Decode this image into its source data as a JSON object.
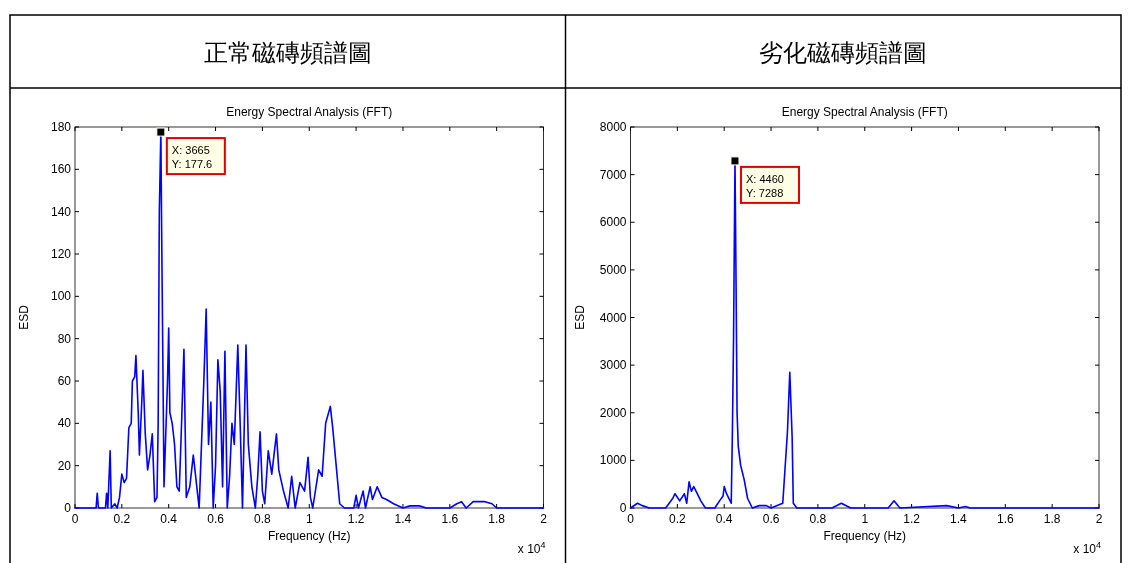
{
  "chart_data": [
    {
      "type": "line",
      "title": "正常磁磚頻譜圖",
      "subtitle": "Energy Spectral Analysis (FFT)",
      "xlabel": "Frequency (Hz)",
      "ylabel": "ESD",
      "xlim": [
        0,
        2
      ],
      "xticks": [
        0,
        0.2,
        0.4,
        0.6,
        0.8,
        1,
        1.2,
        1.4,
        1.6,
        1.8,
        2
      ],
      "ylim": [
        0,
        180
      ],
      "yticks": [
        0,
        20,
        40,
        60,
        80,
        100,
        120,
        140,
        160,
        180
      ],
      "grid": false,
      "series": [
        {
          "color": "#0000ff",
          "x": [
            0,
            0.09,
            0.095,
            0.1,
            0.13,
            0.135,
            0.14,
            0.15,
            0.155,
            0.17,
            0.18,
            0.19,
            0.2,
            0.21,
            0.22,
            0.23,
            0.24,
            0.245,
            0.255,
            0.26,
            0.27,
            0.275,
            0.285,
            0.29,
            0.3,
            0.31,
            0.32,
            0.33,
            0.34,
            0.35,
            0.355,
            0.36,
            0.3665,
            0.37,
            0.38,
            0.395,
            0.4,
            0.405,
            0.415,
            0.425,
            0.435,
            0.445,
            0.455,
            0.465,
            0.475,
            0.49,
            0.505,
            0.52,
            0.53,
            0.55,
            0.56,
            0.57,
            0.58,
            0.59,
            0.6,
            0.61,
            0.62,
            0.63,
            0.64,
            0.65,
            0.66,
            0.67,
            0.68,
            0.695,
            0.705,
            0.715,
            0.73,
            0.74,
            0.755,
            0.77,
            0.78,
            0.79,
            0.8,
            0.81,
            0.825,
            0.84,
            0.86,
            0.87,
            0.89,
            0.91,
            0.925,
            0.94,
            0.96,
            0.98,
            0.995,
            1.005,
            1.015,
            1.04,
            1.055,
            1.07,
            1.09,
            1.1,
            1.115,
            1.13,
            1.15,
            1.19,
            1.2,
            1.21,
            1.23,
            1.24,
            1.26,
            1.27,
            1.29,
            1.31,
            1.33,
            1.36,
            1.4,
            1.43,
            1.47,
            1.5,
            1.6,
            1.63,
            1.65,
            1.67,
            1.7,
            1.75,
            1.78,
            1.8,
            2
          ],
          "values": [
            0,
            0,
            7,
            0,
            0,
            7,
            0,
            27,
            0,
            2,
            0,
            5,
            16,
            12,
            14,
            38,
            40,
            60,
            62,
            72,
            45,
            25,
            50,
            65,
            35,
            18,
            25,
            35,
            3,
            5,
            40,
            140,
            177.6,
            130,
            10,
            60,
            85,
            45,
            40,
            30,
            10,
            8,
            40,
            75,
            5,
            10,
            25,
            10,
            0,
            60,
            94,
            30,
            50,
            0,
            20,
            70,
            55,
            10,
            74,
            0,
            15,
            40,
            30,
            77,
            40,
            0,
            77,
            30,
            10,
            0,
            15,
            36,
            8,
            2,
            27,
            16,
            35,
            18,
            8,
            0,
            15,
            0,
            12,
            8,
            24,
            5,
            0,
            18,
            15,
            40,
            48,
            38,
            20,
            2,
            0,
            0,
            6,
            0,
            8,
            0,
            10,
            4,
            10,
            5,
            4,
            2,
            0,
            1,
            1,
            0,
            0,
            2,
            3,
            0,
            3,
            3,
            2,
            0,
            0
          ]
        }
      ],
      "annotations": [
        {
          "text": "X: 3665\nY: 177.6",
          "x": 0.3665,
          "y": 177.6
        },
        "x 10$^{4}$"
      ]
    },
    {
      "type": "line",
      "title": "劣化磁磚頻譜圖",
      "subtitle": "Energy Spectral Analysis (FFT)",
      "xlabel": "Frequency (Hz)",
      "ylabel": "ESD",
      "xlim": [
        0,
        2
      ],
      "xticks": [
        0,
        0.2,
        0.4,
        0.6,
        0.8,
        1,
        1.2,
        1.4,
        1.6,
        1.8,
        2
      ],
      "ylim": [
        0,
        8000
      ],
      "yticks": [
        0,
        1000,
        2000,
        3000,
        4000,
        5000,
        6000,
        7000,
        8000
      ],
      "grid": false,
      "series": [
        {
          "color": "#0000ff",
          "x": [
            0,
            0.03,
            0.05,
            0.08,
            0.15,
            0.18,
            0.19,
            0.21,
            0.23,
            0.24,
            0.25,
            0.26,
            0.27,
            0.285,
            0.3,
            0.32,
            0.36,
            0.38,
            0.395,
            0.4,
            0.41,
            0.43,
            0.435,
            0.44,
            0.446,
            0.45,
            0.455,
            0.46,
            0.47,
            0.485,
            0.5,
            0.52,
            0.55,
            0.58,
            0.6,
            0.65,
            0.67,
            0.68,
            0.69,
            0.695,
            0.71,
            0.86,
            0.9,
            0.94,
            1.1,
            1.125,
            1.15,
            1.35,
            1.4,
            1.43,
            1.45,
            1.6,
            2
          ],
          "values": [
            0,
            100,
            50,
            0,
            0,
            200,
            300,
            150,
            300,
            100,
            550,
            350,
            450,
            300,
            150,
            0,
            0,
            150,
            250,
            450,
            300,
            100,
            1600,
            3600,
            7288,
            5100,
            2000,
            1300,
            900,
            600,
            200,
            0,
            50,
            50,
            0,
            100,
            1600,
            2850,
            1500,
            100,
            0,
            0,
            100,
            0,
            0,
            150,
            0,
            50,
            0,
            30,
            0,
            0,
            0
          ]
        }
      ],
      "annotations": [
        {
          "text": "X: 4460\nY: 7288",
          "x": 0.446,
          "y": 7288
        },
        "x 10$^{4}$"
      ]
    }
  ]
}
